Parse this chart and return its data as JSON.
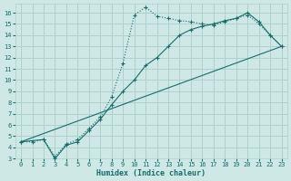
{
  "xlabel": "Humidex (Indice chaleur)",
  "ylabel": "",
  "bg_color": "#cde8e5",
  "line_color": "#1a6b6b",
  "grid_color": "#b0d0ce",
  "xlim": [
    -0.5,
    23.5
  ],
  "ylim": [
    3,
    16.8
  ],
  "xticks": [
    0,
    1,
    2,
    3,
    4,
    5,
    6,
    7,
    8,
    9,
    10,
    11,
    12,
    13,
    14,
    15,
    16,
    17,
    18,
    19,
    20,
    21,
    22,
    23
  ],
  "yticks": [
    3,
    4,
    5,
    6,
    7,
    8,
    9,
    10,
    11,
    12,
    13,
    14,
    15,
    16
  ],
  "line1_x": [
    0,
    1,
    2,
    3,
    4,
    5,
    6,
    7,
    8,
    9,
    10,
    11,
    12,
    13,
    14,
    15,
    16,
    17,
    18,
    19,
    20,
    21,
    22,
    23
  ],
  "line1_y": [
    4.5,
    4.5,
    4.7,
    3.2,
    4.3,
    4.7,
    5.7,
    6.7,
    8.5,
    11.5,
    15.8,
    16.5,
    15.7,
    15.5,
    15.3,
    15.2,
    15.0,
    14.9,
    15.2,
    15.5,
    15.8,
    15.0,
    14.0,
    13.0
  ],
  "line2_x": [
    0,
    2,
    3,
    4,
    5,
    6,
    7,
    8,
    9,
    10,
    11,
    12,
    13,
    14,
    15,
    16,
    17,
    18,
    19,
    20,
    21,
    22,
    23
  ],
  "line2_y": [
    4.5,
    4.7,
    3.0,
    4.2,
    4.5,
    5.5,
    6.5,
    7.8,
    9.0,
    10.0,
    11.3,
    12.0,
    13.0,
    14.0,
    14.5,
    14.8,
    15.0,
    15.3,
    15.5,
    16.0,
    15.2,
    14.0,
    13.0
  ],
  "line3_x": [
    0,
    23
  ],
  "line3_y": [
    4.5,
    13.0
  ]
}
